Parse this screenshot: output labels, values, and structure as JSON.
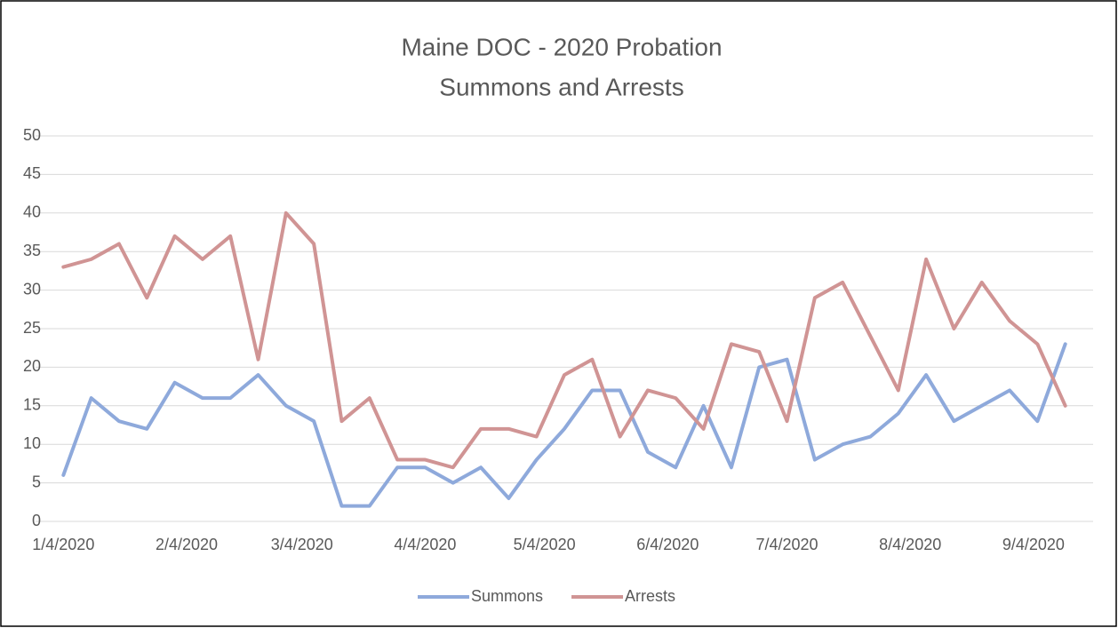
{
  "chart_data": {
    "type": "line",
    "title": [
      "Maine DOC - 2020 Probation",
      "Summons and Arrests"
    ],
    "x": [
      "1/4/2020",
      "1/11/2020",
      "1/18/2020",
      "1/25/2020",
      "2/1/2020",
      "2/8/2020",
      "2/15/2020",
      "2/22/2020",
      "2/29/2020",
      "3/7/2020",
      "3/14/2020",
      "3/21/2020",
      "3/28/2020",
      "4/4/2020",
      "4/11/2020",
      "4/18/2020",
      "4/25/2020",
      "5/2/2020",
      "5/9/2020",
      "5/16/2020",
      "5/23/2020",
      "5/30/2020",
      "6/6/2020",
      "6/13/2020",
      "6/20/2020",
      "6/27/2020",
      "7/4/2020",
      "7/11/2020",
      "7/18/2020",
      "7/25/2020",
      "8/1/2020",
      "8/8/2020",
      "8/15/2020",
      "8/22/2020",
      "8/29/2020",
      "9/5/2020",
      "9/12/2020"
    ],
    "series": [
      {
        "name": "Summons",
        "color": "#8ea9db",
        "values": [
          6,
          16,
          13,
          12,
          18,
          16,
          16,
          19,
          15,
          13,
          2,
          2,
          7,
          7,
          5,
          7,
          3,
          8,
          12,
          17,
          17,
          9,
          7,
          15,
          7,
          20,
          21,
          8,
          10,
          11,
          14,
          19,
          13,
          15,
          17,
          13,
          23
        ]
      },
      {
        "name": "Arrests",
        "color": "#d09494",
        "values": [
          33,
          34,
          36,
          29,
          37,
          34,
          37,
          21,
          40,
          36,
          13,
          16,
          8,
          8,
          7,
          12,
          12,
          11,
          19,
          21,
          11,
          17,
          16,
          12,
          23,
          22,
          13,
          29,
          31,
          24,
          17,
          34,
          25,
          31,
          26,
          23,
          15
        ]
      }
    ],
    "xlim": [
      "12/28/2019",
      "9/19/2020"
    ],
    "xticks": [
      "1/4/2020",
      "2/4/2020",
      "3/4/2020",
      "4/4/2020",
      "5/4/2020",
      "6/4/2020",
      "7/4/2020",
      "8/4/2020",
      "9/4/2020"
    ],
    "ylim": [
      0,
      50
    ],
    "yticks": [
      0,
      5,
      10,
      15,
      20,
      25,
      30,
      35,
      40,
      45,
      50
    ],
    "grid": true,
    "legend": "bottom"
  }
}
